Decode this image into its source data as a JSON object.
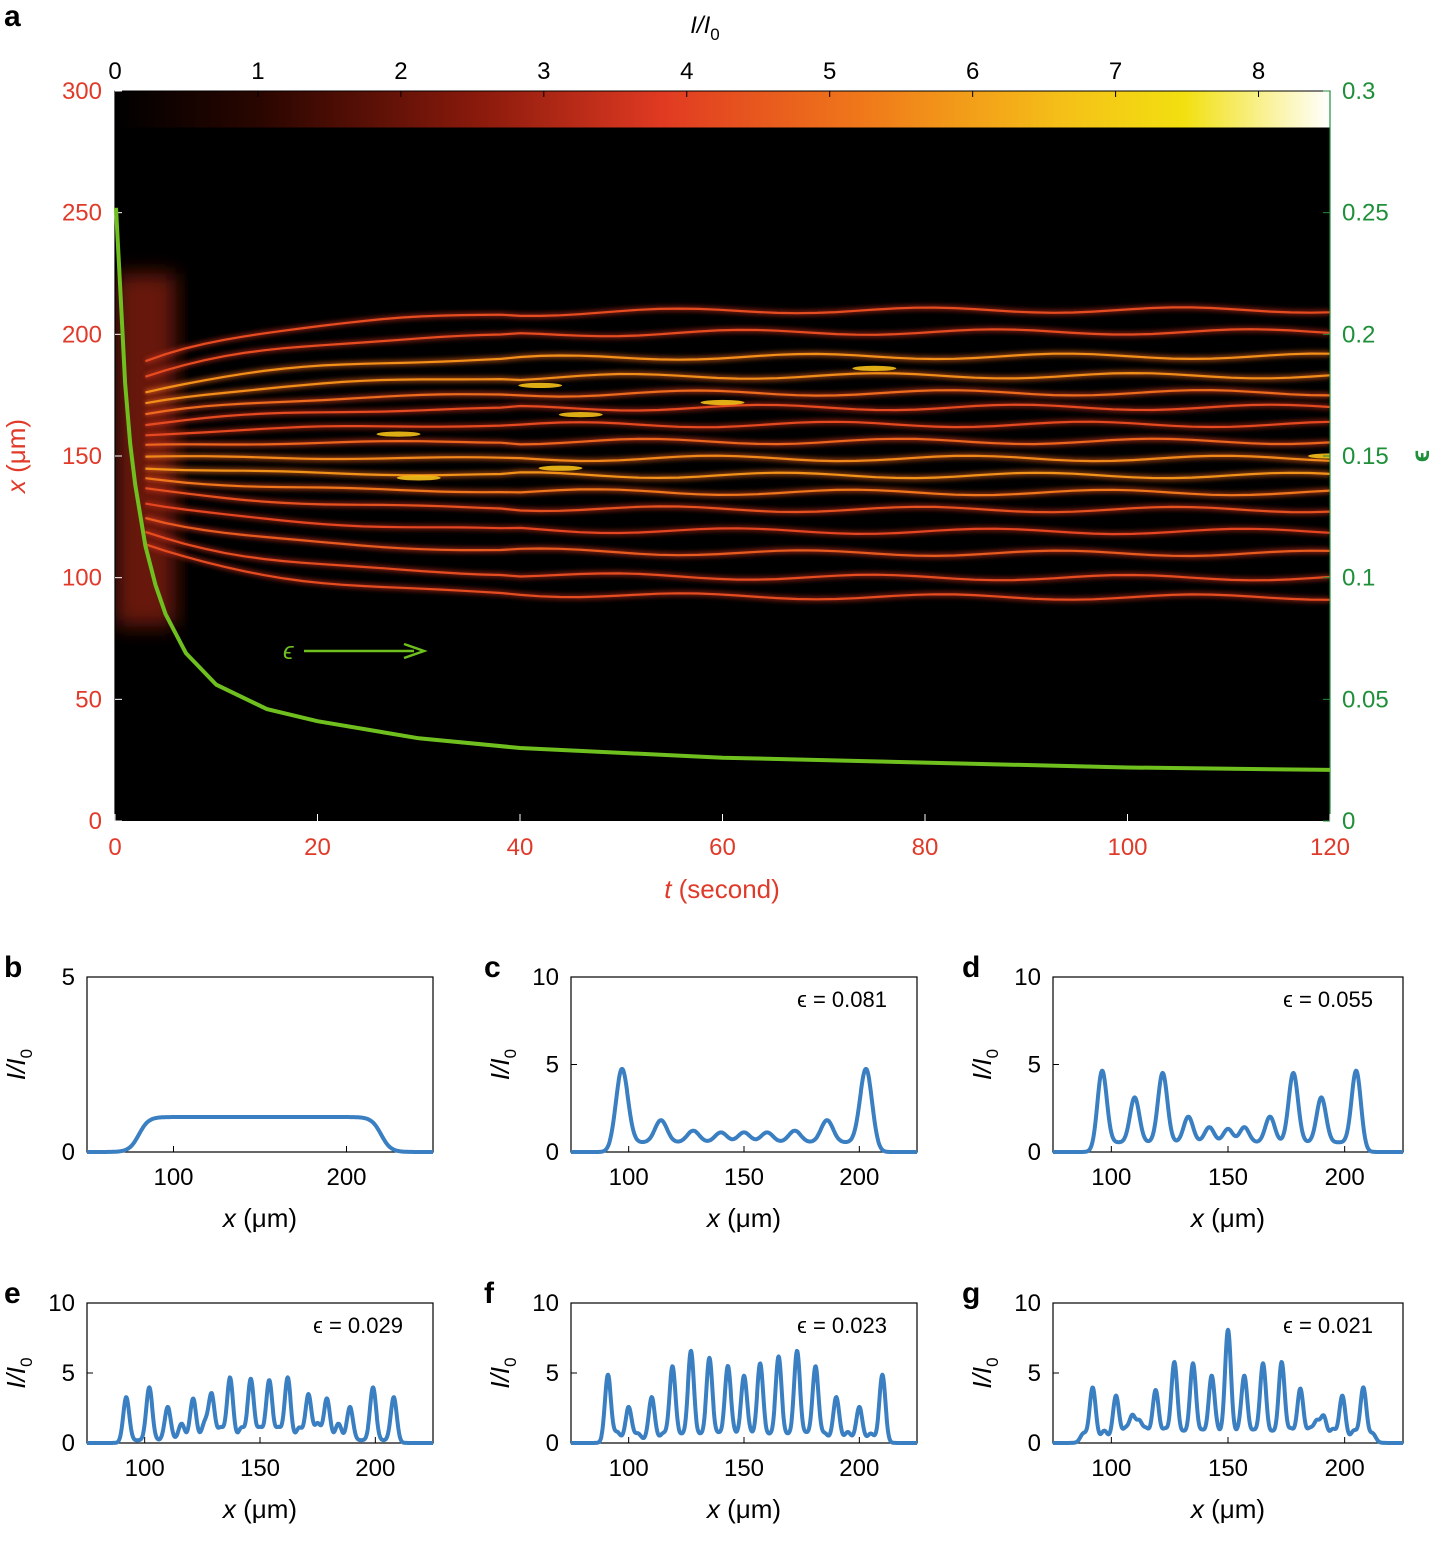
{
  "colors": {
    "red_axis": "#e03a2a",
    "green_axis": "#1f8f3a",
    "eps_curve": "#6fbf1f",
    "profile_line": "#3a7fc1",
    "heat_background": "#000000"
  },
  "panel_a": {
    "label": "a",
    "colorbar": {
      "title": "I/I",
      "title_sub": "0",
      "ticks": [
        "0",
        "1",
        "2",
        "3",
        "4",
        "5",
        "6",
        "7",
        "8"
      ],
      "range": [
        0,
        8.5
      ],
      "colormap": "hot"
    },
    "x_axis": {
      "label_italic": "t",
      "label_rest": " (second)",
      "ticks": [
        "0",
        "20",
        "40",
        "60",
        "80",
        "100",
        "120"
      ],
      "range": [
        0,
        120
      ]
    },
    "y_axis_left": {
      "label_italic": "x",
      "label_rest": " (μm)",
      "ticks": [
        "0",
        "50",
        "100",
        "150",
        "200",
        "250",
        "300"
      ],
      "range": [
        0,
        300
      ]
    },
    "y_axis_right": {
      "label": "ϵ",
      "ticks": [
        "0",
        "0.05",
        "0.1",
        "0.15",
        "0.2",
        "0.25",
        "0.3"
      ],
      "range": [
        0,
        0.3
      ]
    },
    "arrow_label": "ϵ",
    "epsilon_curve": {
      "t": [
        0.1,
        0.5,
        1,
        1.5,
        2,
        3,
        4,
        5,
        7,
        10,
        15,
        20,
        30,
        40,
        50,
        60,
        80,
        100,
        120
      ],
      "eps": [
        0.252,
        0.22,
        0.18,
        0.155,
        0.138,
        0.113,
        0.097,
        0.085,
        0.069,
        0.056,
        0.046,
        0.041,
        0.034,
        0.03,
        0.028,
        0.026,
        0.024,
        0.022,
        0.021
      ]
    },
    "filaments": {
      "t_start": 3,
      "x_positions": [
        92,
        100,
        110,
        119,
        128,
        135,
        142,
        149,
        156,
        163,
        170,
        176,
        183,
        191,
        201,
        210
      ],
      "x_range_initial": [
        80,
        225
      ]
    }
  },
  "chart_data": [
    {
      "type": "heatmap",
      "title": "I/I0",
      "xlabel": "t (second)",
      "ylabel": "x (μm)",
      "xlim": [
        0,
        120
      ],
      "ylim": [
        0,
        300
      ],
      "colorbar_range": [
        0,
        8.5
      ],
      "overlay_line": {
        "name": "ϵ",
        "ylim": [
          0,
          0.3
        ],
        "t": [
          0.1,
          0.5,
          1,
          2,
          3,
          5,
          10,
          20,
          40,
          60,
          80,
          100,
          120
        ],
        "eps": [
          0.252,
          0.22,
          0.18,
          0.138,
          0.113,
          0.085,
          0.056,
          0.041,
          0.03,
          0.026,
          0.024,
          0.022,
          0.021
        ]
      }
    },
    {
      "panel": "b",
      "type": "line",
      "xlabel": "x (μm)",
      "ylabel": "I/I0",
      "xlim": [
        50,
        250
      ],
      "ylim": [
        0,
        5
      ],
      "epsilon": null,
      "peaks": [],
      "baseline": 1.0,
      "plateau": [
        80,
        220
      ]
    },
    {
      "panel": "c",
      "type": "line",
      "xlabel": "x (μm)",
      "ylabel": "I/I0",
      "xlim": [
        75,
        225
      ],
      "ylim": [
        0,
        10
      ],
      "epsilon": "0.081",
      "peaks": [
        [
          97,
          4.8
        ],
        [
          114,
          1.6
        ],
        [
          128,
          1.0
        ],
        [
          140,
          0.9
        ],
        [
          150,
          0.9
        ],
        [
          160,
          0.9
        ],
        [
          172,
          1.0
        ],
        [
          186,
          1.6
        ],
        [
          203,
          4.8
        ]
      ]
    },
    {
      "panel": "d",
      "type": "line",
      "xlabel": "x (μm)",
      "ylabel": "I/I0",
      "xlim": [
        75,
        225
      ],
      "ylim": [
        0,
        10
      ],
      "epsilon": "0.055",
      "peaks": [
        [
          96,
          4.7
        ],
        [
          110,
          2.9
        ],
        [
          122,
          4.3
        ],
        [
          133,
          1.8
        ],
        [
          142,
          1.2
        ],
        [
          150,
          1.1
        ],
        [
          157,
          1.2
        ],
        [
          168,
          1.8
        ],
        [
          178,
          4.3
        ],
        [
          190,
          2.9
        ],
        [
          205,
          4.7
        ]
      ]
    },
    {
      "panel": "e",
      "type": "line",
      "xlabel": "x (μm)",
      "ylabel": "I/I0",
      "xlim": [
        75,
        225
      ],
      "ylim": [
        0,
        10
      ],
      "epsilon": "0.029",
      "peaks": [
        [
          92,
          3.3
        ],
        [
          102,
          3.9
        ],
        [
          110,
          2.5
        ],
        [
          116,
          1.3
        ],
        [
          121,
          3.1
        ],
        [
          126,
          1.3
        ],
        [
          129,
          3.4
        ],
        [
          133,
          1.0
        ],
        [
          137,
          4.6
        ],
        [
          142,
          1.0
        ],
        [
          146,
          4.5
        ],
        [
          150,
          1.0
        ],
        [
          154,
          4.4
        ],
        [
          158,
          1.0
        ],
        [
          162,
          4.6
        ],
        [
          167,
          1.0
        ],
        [
          171,
          3.4
        ],
        [
          175,
          1.3
        ],
        [
          179,
          3.1
        ],
        [
          184,
          1.3
        ],
        [
          189,
          2.5
        ],
        [
          199,
          3.9
        ],
        [
          208,
          3.3
        ]
      ]
    },
    {
      "panel": "f",
      "type": "line",
      "xlabel": "x (μm)",
      "ylabel": "I/I0",
      "xlim": [
        75,
        225
      ],
      "ylim": [
        0,
        10
      ],
      "epsilon": "0.023",
      "peaks": [
        [
          91,
          4.9
        ],
        [
          95,
          0.7
        ],
        [
          100,
          2.5
        ],
        [
          104,
          0.6
        ],
        [
          110,
          3.2
        ],
        [
          115,
          0.6
        ],
        [
          119,
          5.4
        ],
        [
          123,
          0.5
        ],
        [
          127,
          6.5
        ],
        [
          131,
          0.5
        ],
        [
          135,
          6.0
        ],
        [
          139,
          0.6
        ],
        [
          143,
          5.4
        ],
        [
          146,
          0.5
        ],
        [
          150,
          4.7
        ],
        [
          153,
          0.5
        ],
        [
          157,
          5.6
        ],
        [
          161,
          0.5
        ],
        [
          165,
          6.1
        ],
        [
          169,
          0.5
        ],
        [
          173,
          6.5
        ],
        [
          177,
          0.6
        ],
        [
          181,
          5.4
        ],
        [
          185,
          0.6
        ],
        [
          190,
          3.2
        ],
        [
          195,
          0.7
        ],
        [
          200,
          2.5
        ],
        [
          205,
          0.6
        ],
        [
          210,
          4.9
        ]
      ]
    },
    {
      "panel": "g",
      "type": "line",
      "xlabel": "x (μm)",
      "ylabel": "I/I0",
      "xlim": [
        75,
        225
      ],
      "ylim": [
        0,
        10
      ],
      "epsilon": "0.021",
      "peaks": [
        [
          88,
          0.7
        ],
        [
          92,
          3.9
        ],
        [
          97,
          0.8
        ],
        [
          102,
          3.3
        ],
        [
          106,
          0.9
        ],
        [
          109,
          1.8
        ],
        [
          112,
          1.4
        ],
        [
          115,
          0.9
        ],
        [
          119,
          3.7
        ],
        [
          123,
          0.9
        ],
        [
          127,
          5.7
        ],
        [
          131,
          0.7
        ],
        [
          135,
          5.6
        ],
        [
          139,
          0.8
        ],
        [
          143,
          4.7
        ],
        [
          146,
          0.6
        ],
        [
          150,
          8.0
        ],
        [
          154,
          0.6
        ],
        [
          157,
          4.7
        ],
        [
          161,
          0.8
        ],
        [
          165,
          5.6
        ],
        [
          169,
          0.7
        ],
        [
          173,
          5.7
        ],
        [
          177,
          0.9
        ],
        [
          181,
          3.8
        ],
        [
          185,
          0.9
        ],
        [
          188,
          1.4
        ],
        [
          191,
          1.8
        ],
        [
          195,
          0.9
        ],
        [
          199,
          3.3
        ],
        [
          204,
          0.8
        ],
        [
          208,
          3.9
        ],
        [
          212,
          0.7
        ]
      ]
    }
  ],
  "profile_panels": [
    {
      "label": "b",
      "ylabel_main": "I/I",
      "ylabel_sub": "0",
      "xlabel_italic": "x",
      "xlabel_rest": " (μm)",
      "yticks": [
        "0",
        "5"
      ],
      "xticks": [
        "100",
        "200"
      ],
      "annotation": ""
    },
    {
      "label": "c",
      "ylabel_main": "I/I",
      "ylabel_sub": "0",
      "xlabel_italic": "x",
      "xlabel_rest": " (μm)",
      "yticks": [
        "0",
        "5",
        "10"
      ],
      "xticks": [
        "100",
        "150",
        "200"
      ],
      "annotation": "ϵ = 0.081"
    },
    {
      "label": "d",
      "ylabel_main": "I/I",
      "ylabel_sub": "0",
      "xlabel_italic": "x",
      "xlabel_rest": " (μm)",
      "yticks": [
        "0",
        "5",
        "10"
      ],
      "xticks": [
        "100",
        "150",
        "200"
      ],
      "annotation": "ϵ = 0.055"
    },
    {
      "label": "e",
      "ylabel_main": "I/I",
      "ylabel_sub": "0",
      "xlabel_italic": "x",
      "xlabel_rest": " (μm)",
      "yticks": [
        "0",
        "5",
        "10"
      ],
      "xticks": [
        "100",
        "150",
        "200"
      ],
      "annotation": "ϵ = 0.029"
    },
    {
      "label": "f",
      "ylabel_main": "I/I",
      "ylabel_sub": "0",
      "xlabel_italic": "x",
      "xlabel_rest": " (μm)",
      "yticks": [
        "0",
        "5",
        "10"
      ],
      "xticks": [
        "100",
        "150",
        "200"
      ],
      "annotation": "ϵ = 0.023"
    },
    {
      "label": "g",
      "ylabel_main": "I/I",
      "ylabel_sub": "0",
      "xlabel_italic": "x",
      "xlabel_rest": " (μm)",
      "yticks": [
        "0",
        "5",
        "10"
      ],
      "xticks": [
        "100",
        "150",
        "200"
      ],
      "annotation": "ϵ = 0.021"
    }
  ]
}
